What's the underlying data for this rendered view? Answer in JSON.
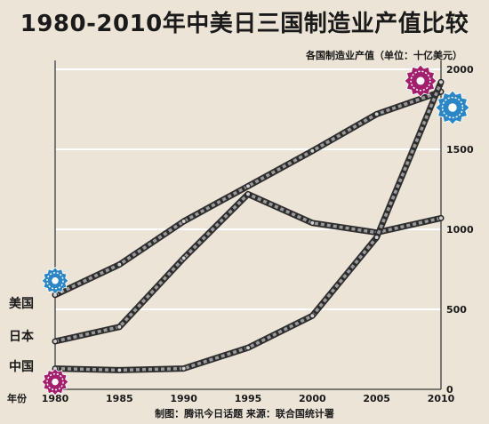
{
  "chart_data": {
    "type": "line",
    "title": "1980-2010年中美日三国制造业产值比较",
    "ylabel": "各国制造业产值（单位：十亿美元）",
    "xlabel": "年份",
    "x": [
      1980,
      1985,
      1990,
      1995,
      2000,
      2005,
      2010
    ],
    "xlim": [
      1980,
      2010
    ],
    "ylim": [
      0,
      2000
    ],
    "y_ticks": [
      0,
      500,
      1000,
      1500,
      2000
    ],
    "x_ticks": [
      1980,
      1985,
      1990,
      1995,
      2000,
      2005,
      2010
    ],
    "grid": "horizontal",
    "series": [
      {
        "name": "美国",
        "color": "#3a3a3a",
        "values": [
          590,
          780,
          1050,
          1270,
          1490,
          1720,
          1860
        ]
      },
      {
        "name": "日本",
        "color": "#3a3a3a",
        "values": [
          300,
          390,
          820,
          1220,
          1040,
          980,
          1070
        ]
      },
      {
        "name": "中国",
        "color": "#3a3a3a",
        "values": [
          130,
          120,
          130,
          260,
          460,
          950,
          1920
        ]
      }
    ],
    "credit": "制图：腾讯今日话题  来源：联合国统计署",
    "colors": {
      "background": "#ece4d6",
      "grid": "#ffffff",
      "axis": "#555555",
      "gear_blue": "#2a86c4",
      "gear_magenta": "#a31f6d"
    },
    "icons": [
      "gear-icon-blue",
      "gear-icon-magenta"
    ]
  }
}
